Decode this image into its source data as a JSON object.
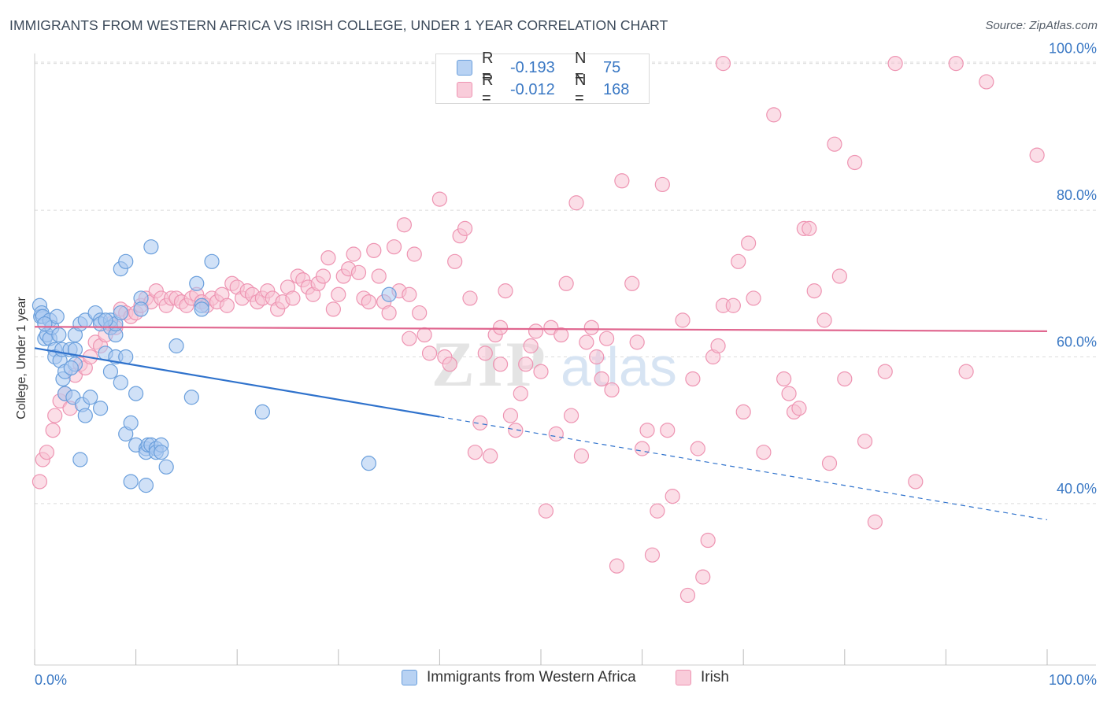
{
  "title": "IMMIGRANTS FROM WESTERN AFRICA VS IRISH COLLEGE, UNDER 1 YEAR CORRELATION CHART",
  "source": "Source: ZipAtlas.com",
  "watermark": "ZIPatlas",
  "legend": {
    "series": [
      {
        "r_label": "R =",
        "r_value": "-0.193",
        "n_label": "N =",
        "n_value": "75",
        "color": "#7aaee8"
      },
      {
        "r_label": "R =",
        "r_value": "-0.012",
        "n_label": "N =",
        "n_value": "168",
        "color": "#f2a0bb"
      }
    ]
  },
  "bottom_legend": [
    "Immigrants from Western Africa",
    "Irish"
  ],
  "colors": {
    "blue_fill": "#a9c8f0",
    "blue_stroke": "#6a9fdc",
    "blue_line": "#2f72cc",
    "pink_fill": "#f7c3d3",
    "pink_stroke": "#ee94b2",
    "pink_line": "#e0668f",
    "axis_text": "#3a78c4",
    "grid": "#dcdcdc"
  },
  "chart_data": {
    "type": "scatter",
    "title": "IMMIGRANTS FROM WESTERN AFRICA VS IRISH COLLEGE, UNDER 1 YEAR CORRELATION CHART",
    "xlabel": "",
    "ylabel": "College, Under 1 year",
    "x_tick_labels": [
      "0.0%",
      "100.0%"
    ],
    "y_tick_labels": [
      "40.0%",
      "60.0%",
      "80.0%",
      "100.0%"
    ],
    "xlim": [
      0,
      100
    ],
    "ylim": [
      18,
      102
    ],
    "grid": true,
    "series": [
      {
        "name": "Immigrants from Western Africa",
        "r": -0.193,
        "n": 75,
        "trend": {
          "x0": 0,
          "y0": 61.2,
          "x1": 100,
          "y1": 37.8,
          "solid_until": 40
        },
        "points": [
          [
            0.5,
            67
          ],
          [
            0.6,
            65.5
          ],
          [
            0.7,
            66
          ],
          [
            0.8,
            65.5
          ],
          [
            1,
            62.5
          ],
          [
            1.2,
            63
          ],
          [
            1.5,
            65
          ],
          [
            1.5,
            62.5
          ],
          [
            1.7,
            64
          ],
          [
            2,
            61
          ],
          [
            2,
            60
          ],
          [
            2.2,
            65.5
          ],
          [
            2.5,
            59.5
          ],
          [
            2.7,
            61
          ],
          [
            2.8,
            57
          ],
          [
            3,
            58
          ],
          [
            3,
            55
          ],
          [
            3.5,
            61
          ],
          [
            3.8,
            54.5
          ],
          [
            4,
            59
          ],
          [
            4,
            61
          ],
          [
            4,
            63
          ],
          [
            4.5,
            64.5
          ],
          [
            4.5,
            46
          ],
          [
            4.7,
            53.5
          ],
          [
            5,
            65
          ],
          [
            5,
            52
          ],
          [
            5.5,
            54.5
          ],
          [
            6,
            66
          ],
          [
            6.5,
            65
          ],
          [
            6.5,
            64.5
          ],
          [
            7,
            60.5
          ],
          [
            7.5,
            65
          ],
          [
            7.5,
            64
          ],
          [
            7.5,
            58
          ],
          [
            8,
            60
          ],
          [
            8,
            63
          ],
          [
            8,
            64.5
          ],
          [
            8.5,
            56.5
          ],
          [
            8.5,
            66
          ],
          [
            8.5,
            72
          ],
          [
            9,
            73
          ],
          [
            9,
            60
          ],
          [
            9,
            49.5
          ],
          [
            9.5,
            43
          ],
          [
            9.5,
            51
          ],
          [
            10,
            55
          ],
          [
            10,
            48
          ],
          [
            10.5,
            68
          ],
          [
            10.5,
            66.5
          ],
          [
            11,
            47.5
          ],
          [
            11,
            47
          ],
          [
            11,
            42.5
          ],
          [
            11.2,
            48
          ],
          [
            11.5,
            75
          ],
          [
            11.5,
            48
          ],
          [
            12,
            47.5
          ],
          [
            12,
            47
          ],
          [
            12.5,
            48
          ],
          [
            12.5,
            47
          ],
          [
            13,
            45
          ],
          [
            14,
            61.5
          ],
          [
            15.5,
            54.5
          ],
          [
            16,
            70
          ],
          [
            16.5,
            67
          ],
          [
            16.5,
            66.5
          ],
          [
            17.5,
            73
          ],
          [
            22.5,
            52.5
          ],
          [
            33,
            45.5
          ],
          [
            35,
            68.5
          ],
          [
            6.5,
            53
          ],
          [
            3.6,
            58.5
          ],
          [
            2.4,
            63
          ],
          [
            1,
            64.5
          ],
          [
            7,
            65
          ]
        ]
      },
      {
        "name": "Irish",
        "r": -0.012,
        "n": 168,
        "trend": {
          "x0": 0,
          "y0": 64.1,
          "x1": 100,
          "y1": 63.5,
          "solid_until": 100
        },
        "points": [
          [
            0.5,
            43
          ],
          [
            0.8,
            46
          ],
          [
            1.2,
            47
          ],
          [
            1.8,
            50
          ],
          [
            2,
            52
          ],
          [
            2.5,
            54
          ],
          [
            3,
            55
          ],
          [
            3.5,
            53
          ],
          [
            4,
            57.5
          ],
          [
            4.5,
            59
          ],
          [
            5,
            58.5
          ],
          [
            5.5,
            60
          ],
          [
            6,
            62
          ],
          [
            6.5,
            61.5
          ],
          [
            7,
            63
          ],
          [
            7.5,
            64.5
          ],
          [
            8,
            64
          ],
          [
            8.5,
            66.5
          ],
          [
            9,
            66
          ],
          [
            9.5,
            65.5
          ],
          [
            10,
            66
          ],
          [
            10.5,
            67
          ],
          [
            11,
            68
          ],
          [
            11.5,
            67.5
          ],
          [
            12,
            69
          ],
          [
            12.5,
            68
          ],
          [
            13,
            67
          ],
          [
            13.5,
            68
          ],
          [
            14,
            68
          ],
          [
            14.5,
            67.5
          ],
          [
            15,
            67
          ],
          [
            15.5,
            68
          ],
          [
            16,
            68.5
          ],
          [
            16.5,
            67.5
          ],
          [
            17,
            67
          ],
          [
            17.5,
            68
          ],
          [
            18,
            67.5
          ],
          [
            18.5,
            68.5
          ],
          [
            19,
            67
          ],
          [
            19.5,
            70
          ],
          [
            20,
            69.5
          ],
          [
            20.5,
            68
          ],
          [
            21,
            69
          ],
          [
            21.5,
            68.5
          ],
          [
            22,
            67.5
          ],
          [
            22.5,
            68
          ],
          [
            23,
            69
          ],
          [
            23.5,
            68
          ],
          [
            24,
            66.5
          ],
          [
            24.5,
            67.5
          ],
          [
            25,
            69.5
          ],
          [
            25.5,
            68
          ],
          [
            26,
            71
          ],
          [
            26.5,
            70.5
          ],
          [
            27,
            69.5
          ],
          [
            27.5,
            68.5
          ],
          [
            28,
            70
          ],
          [
            28.5,
            71
          ],
          [
            29,
            73.5
          ],
          [
            29.5,
            66.5
          ],
          [
            30,
            68.5
          ],
          [
            30.5,
            71
          ],
          [
            31,
            72
          ],
          [
            31.5,
            74
          ],
          [
            32,
            71.5
          ],
          [
            32.5,
            68
          ],
          [
            33,
            67.5
          ],
          [
            33.5,
            74.5
          ],
          [
            34,
            71
          ],
          [
            34.5,
            67.5
          ],
          [
            35,
            66
          ],
          [
            35.5,
            75
          ],
          [
            36,
            69
          ],
          [
            36.5,
            78
          ],
          [
            37,
            68.5
          ],
          [
            37.5,
            74
          ],
          [
            38,
            66
          ],
          [
            38.5,
            63
          ],
          [
            39,
            60.5
          ],
          [
            40,
            81.5
          ],
          [
            40.5,
            60
          ],
          [
            41,
            59
          ],
          [
            41.5,
            73
          ],
          [
            42,
            76.5
          ],
          [
            42.5,
            77.5
          ],
          [
            43,
            68
          ],
          [
            43.5,
            47
          ],
          [
            44,
            51
          ],
          [
            44.5,
            60.5
          ],
          [
            45,
            46.5
          ],
          [
            45.5,
            63
          ],
          [
            46,
            59
          ],
          [
            46.5,
            69
          ],
          [
            47,
            52
          ],
          [
            47.5,
            50
          ],
          [
            48,
            55
          ],
          [
            48.5,
            59
          ],
          [
            49,
            61.5
          ],
          [
            49.5,
            63.5
          ],
          [
            50,
            58
          ],
          [
            50.5,
            39
          ],
          [
            51,
            64
          ],
          [
            51.5,
            49.5
          ],
          [
            52,
            63
          ],
          [
            52.5,
            70
          ],
          [
            53,
            52
          ],
          [
            53.5,
            81
          ],
          [
            54,
            46.5
          ],
          [
            54.5,
            62
          ],
          [
            55,
            64
          ],
          [
            55.5,
            60
          ],
          [
            56,
            57
          ],
          [
            56.5,
            62.5
          ],
          [
            57,
            55.5
          ],
          [
            57.5,
            31.5
          ],
          [
            58,
            84
          ],
          [
            59,
            70
          ],
          [
            59.5,
            62
          ],
          [
            60,
            47.5
          ],
          [
            60.5,
            50
          ],
          [
            61,
            33
          ],
          [
            61.5,
            39
          ],
          [
            62,
            83.5
          ],
          [
            62.5,
            50
          ],
          [
            63,
            41
          ],
          [
            64,
            65
          ],
          [
            64.5,
            27.5
          ],
          [
            65,
            57
          ],
          [
            65.5,
            47.5
          ],
          [
            66,
            30
          ],
          [
            66.5,
            35
          ],
          [
            67,
            60
          ],
          [
            67.5,
            61.5
          ],
          [
            68,
            67
          ],
          [
            69,
            67
          ],
          [
            69.5,
            73
          ],
          [
            70,
            52.5
          ],
          [
            70.5,
            75.5
          ],
          [
            71,
            68
          ],
          [
            72,
            47
          ],
          [
            73,
            93
          ],
          [
            74,
            57
          ],
          [
            74.5,
            55
          ],
          [
            75,
            52.5
          ],
          [
            75.5,
            53
          ],
          [
            76,
            77.5
          ],
          [
            76.5,
            77.5
          ],
          [
            77,
            69
          ],
          [
            78,
            65
          ],
          [
            78.5,
            45.5
          ],
          [
            79,
            89
          ],
          [
            79.5,
            71
          ],
          [
            80,
            57
          ],
          [
            81,
            86.5
          ],
          [
            82,
            48.5
          ],
          [
            83,
            37.5
          ],
          [
            84,
            58
          ],
          [
            85,
            100
          ],
          [
            87,
            43
          ],
          [
            91,
            100
          ],
          [
            92,
            58
          ],
          [
            94,
            97.5
          ],
          [
            99,
            87.5
          ],
          [
            68,
            100
          ],
          [
            37,
            62.5
          ],
          [
            46,
            64
          ]
        ]
      }
    ]
  }
}
